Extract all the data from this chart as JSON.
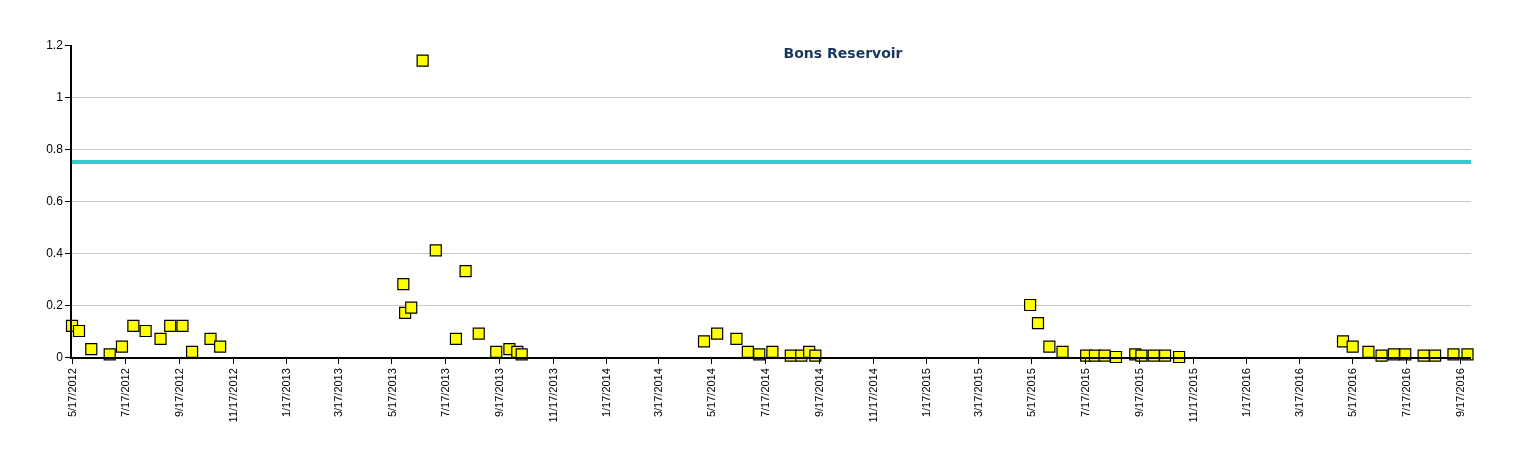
{
  "chart_data": {
    "type": "scatter",
    "title": "Bons Reservoir",
    "x": [
      "2012-05-17",
      "2012-05-25",
      "2012-06-08",
      "2012-06-29",
      "2012-07-13",
      "2012-07-26",
      "2012-08-09",
      "2012-08-26",
      "2012-09-06",
      "2012-09-20",
      "2012-10-01",
      "2012-10-22",
      "2012-11-02",
      "2013-05-30",
      "2013-06-01",
      "2013-06-08",
      "2013-06-21",
      "2013-07-06",
      "2013-07-29",
      "2013-08-09",
      "2013-08-24",
      "2013-09-13",
      "2013-09-28",
      "2013-10-07",
      "2013-10-12",
      "2014-05-08",
      "2014-05-23",
      "2014-06-14",
      "2014-06-27",
      "2014-07-10",
      "2014-07-25",
      "2014-08-15",
      "2014-08-27",
      "2014-09-05",
      "2014-09-12",
      "2015-05-15",
      "2015-05-24",
      "2015-06-06",
      "2015-06-21",
      "2015-07-18",
      "2015-07-28",
      "2015-08-08",
      "2015-08-21",
      "2015-09-12",
      "2015-09-19",
      "2015-10-03",
      "2015-10-16",
      "2015-11-01",
      "2016-05-06",
      "2016-05-17",
      "2016-06-04",
      "2016-06-19",
      "2016-07-03",
      "2016-07-16",
      "2016-08-06",
      "2016-08-19",
      "2016-09-09",
      "2016-09-25"
    ],
    "series": [
      {
        "color": "#ffff00",
        "values": [
          0.12,
          0.1,
          0.03,
          0.01,
          0.04,
          0.12,
          0.1,
          0.07,
          0.12,
          0.12,
          0.02,
          0.07,
          0.04,
          0.28,
          0.17,
          0.19,
          1.14,
          0.41,
          0.07,
          0.33,
          0.09,
          0.02,
          0.03,
          0.02,
          0.01,
          0.06,
          0.09,
          0.07,
          0.02,
          0.01,
          0.02,
          0.005,
          0.005,
          0.02,
          0.005,
          0.2,
          0.13,
          0.04,
          0.02,
          0.005,
          0.005,
          0.005,
          0,
          0.01,
          0.005,
          0.005,
          0.005,
          0,
          0.06,
          0.04,
          0.02,
          0.005,
          0.01,
          0.01,
          0.005,
          0.005,
          0.01,
          0.01
        ]
      }
    ],
    "marker": "square",
    "xlim": [
      "2012-05-17",
      "2016-09-29"
    ],
    "xticks": [
      {
        "value": "2012-05-17",
        "label": "5/17/2012"
      },
      {
        "value": "2012-07-17",
        "label": "7/17/2012"
      },
      {
        "value": "2012-09-17",
        "label": "9/17/2012"
      },
      {
        "value": "2012-11-17",
        "label": "11/17/2012"
      },
      {
        "value": "2013-01-17",
        "label": "1/17/2013"
      },
      {
        "value": "2013-03-17",
        "label": "3/17/2013"
      },
      {
        "value": "2013-05-17",
        "label": "5/17/2013"
      },
      {
        "value": "2013-07-17",
        "label": "7/17/2013"
      },
      {
        "value": "2013-09-17",
        "label": "9/17/2013"
      },
      {
        "value": "2013-11-17",
        "label": "11/17/2013"
      },
      {
        "value": "2014-01-17",
        "label": "1/17/2014"
      },
      {
        "value": "2014-03-17",
        "label": "3/17/2014"
      },
      {
        "value": "2014-05-17",
        "label": "5/17/2014"
      },
      {
        "value": "2014-07-17",
        "label": "7/17/2014"
      },
      {
        "value": "2014-09-17",
        "label": "9/17/2014"
      },
      {
        "value": "2014-11-17",
        "label": "11/17/2014"
      },
      {
        "value": "2015-01-17",
        "label": "1/17/2015"
      },
      {
        "value": "2015-03-17",
        "label": "3/17/2015"
      },
      {
        "value": "2015-05-17",
        "label": "5/17/2015"
      },
      {
        "value": "2015-07-17",
        "label": "7/17/2015"
      },
      {
        "value": "2015-09-17",
        "label": "9/17/2015"
      },
      {
        "value": "2015-11-17",
        "label": "11/17/2015"
      },
      {
        "value": "2016-01-17",
        "label": "1/17/2016"
      },
      {
        "value": "2016-03-17",
        "label": "3/17/2016"
      },
      {
        "value": "2016-05-17",
        "label": "5/17/2016"
      },
      {
        "value": "2016-07-17",
        "label": "7/17/2016"
      },
      {
        "value": "2016-09-17",
        "label": "9/17/2016"
      }
    ],
    "ylim": [
      0,
      1.2
    ],
    "yticks": [
      0,
      0.2,
      0.4,
      0.6,
      0.8,
      1,
      1.2
    ],
    "grid": "y",
    "ref_lines": [
      {
        "axis": "y",
        "value": 0.75,
        "color": "#33cccc"
      }
    ]
  }
}
